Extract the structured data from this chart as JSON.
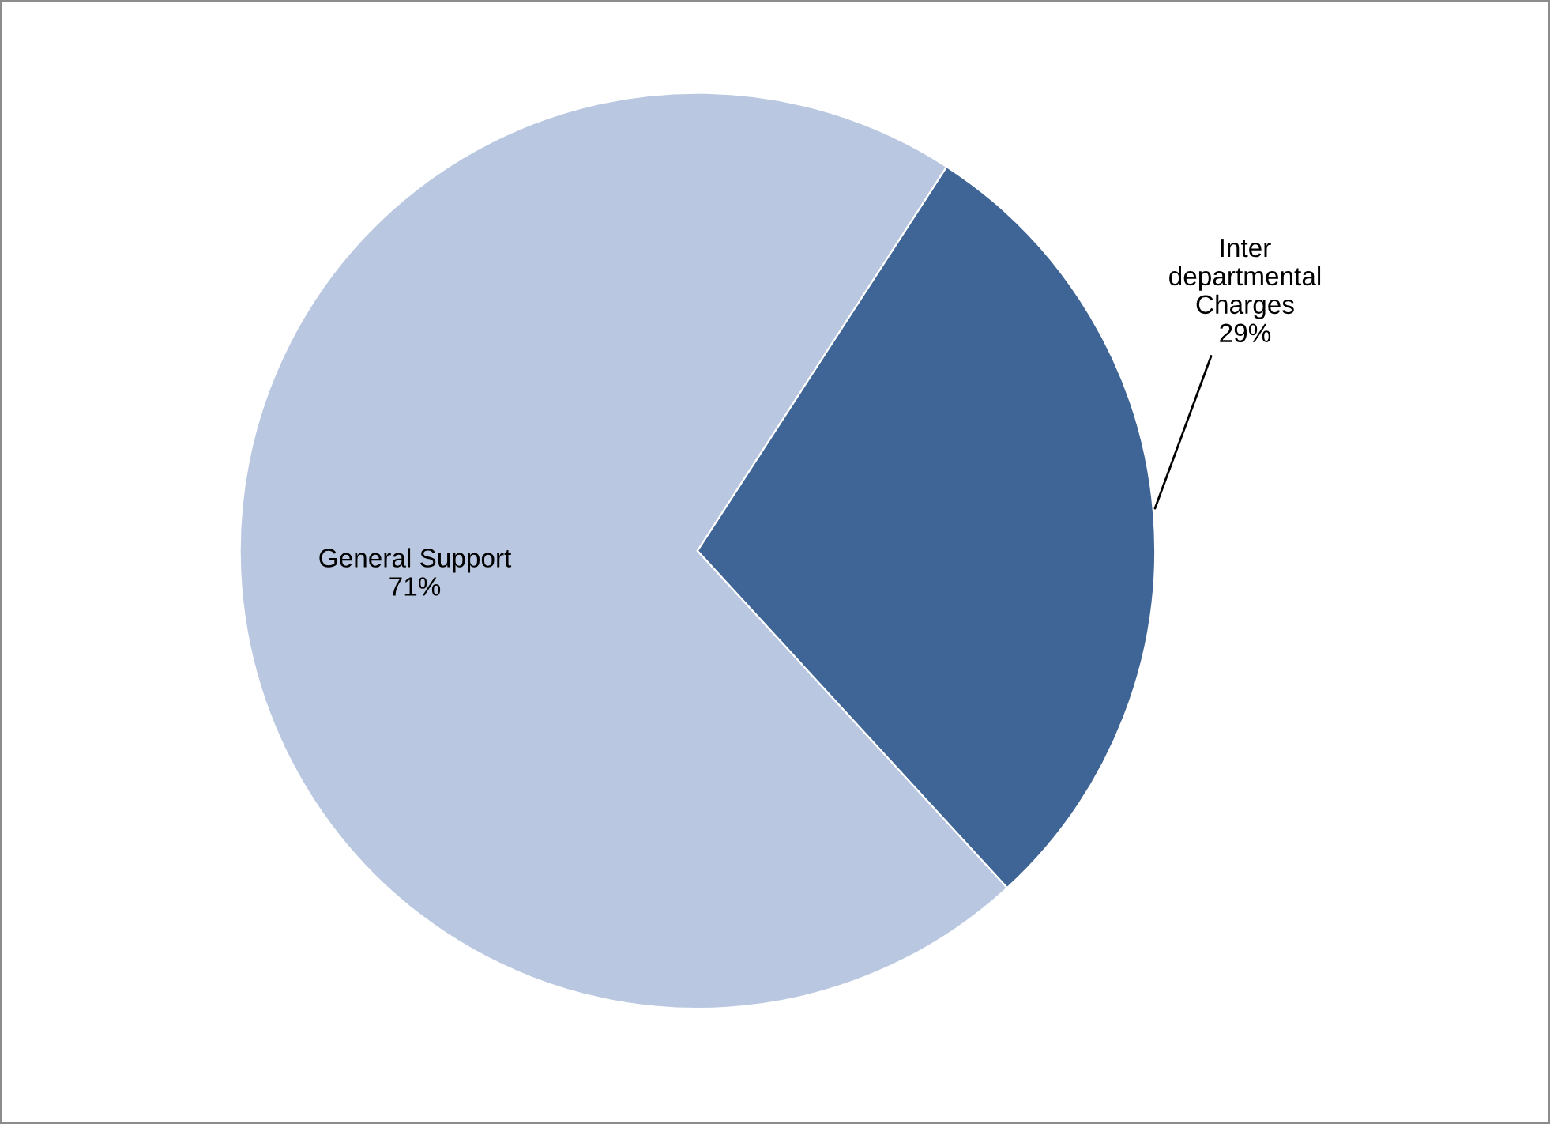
{
  "chart_data": {
    "type": "pie",
    "categories": [
      "General Support",
      "Inter\ndepartmental\nCharges"
    ],
    "values": [
      71,
      29
    ],
    "colors": [
      "#b9c8e0",
      "#3e6595"
    ],
    "value_labels": [
      "71%",
      "29%"
    ]
  }
}
